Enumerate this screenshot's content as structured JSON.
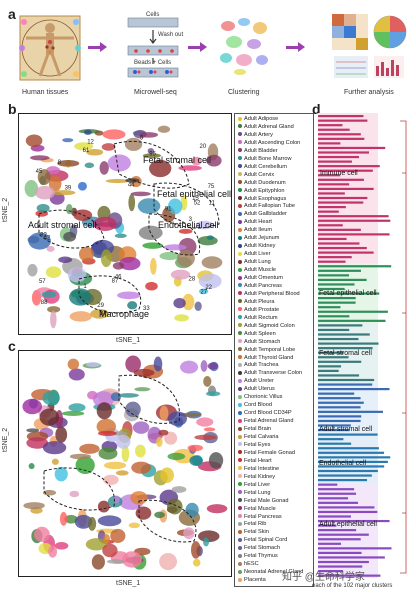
{
  "panel_a": {
    "letter": "a",
    "steps": [
      "Human tissues",
      "Microwell-seq",
      "Clustering",
      "Further analysis"
    ],
    "microwell": {
      "cells": "Cells",
      "wash": "Wash out",
      "beads": "Beads + Cells"
    }
  },
  "panel_b": {
    "letter": "b",
    "xlabel": "tSNE_1",
    "ylabel": "tSNE_2",
    "labels": [
      "Fetal stromal cell",
      "Fetal epithelial cell",
      "Adult stromal cell",
      "Endothelial cell",
      "Macrophage"
    ],
    "numbers": [
      "28",
      "75",
      "22",
      "44",
      "88",
      "12",
      "15",
      "1",
      "20",
      "39",
      "11",
      "45",
      "3",
      "37",
      "57",
      "8",
      "27",
      "61",
      "46",
      "52",
      "82",
      "42",
      "33",
      "91",
      "29",
      "87",
      "5",
      "95"
    ]
  },
  "panel_c": {
    "letter": "c",
    "xlabel": "tSNE_1",
    "ylabel": "tSNE_2"
  },
  "panel_d": {
    "letter": "d",
    "groups": [
      "Immune cell",
      "Fetal epithelial cell",
      "Fetal stromal cell",
      "Adult stromal cell",
      "Endothelial cell",
      "Adult epithelial cell"
    ],
    "footer": "each of the 102 major clusters"
  },
  "legend": [
    {
      "name": "Adult Adipose",
      "color": "#e6c229"
    },
    {
      "name": "Adult Adrenal Gland",
      "color": "#3d7a3d"
    },
    {
      "name": "Adult Artery",
      "color": "#6b4a8a"
    },
    {
      "name": "Adult Ascending Colon",
      "color": "#d06ac0"
    },
    {
      "name": "Adult Bladder",
      "color": "#8a3a6a"
    },
    {
      "name": "Adult Bone Marrow",
      "color": "#2f8f8f"
    },
    {
      "name": "Adult Cerebellum",
      "color": "#4a4a9a"
    },
    {
      "name": "Adult Cervix",
      "color": "#c8b860"
    },
    {
      "name": "Adult Duodenum",
      "color": "#a04a2a"
    },
    {
      "name": "Adult Epityphlon",
      "color": "#2a8a4a"
    },
    {
      "name": "Adult Esophagus",
      "color": "#6a2a2a"
    },
    {
      "name": "Adult Fallopian Tube",
      "color": "#c04040"
    },
    {
      "name": "Adult Gallbladder",
      "color": "#3a6ab0"
    },
    {
      "name": "Adult Heart",
      "color": "#7a3a9a"
    },
    {
      "name": "Adult Ileum",
      "color": "#e08030"
    },
    {
      "name": "Adult Jejunum",
      "color": "#1a7a7a"
    },
    {
      "name": "Adult Kidney",
      "color": "#2a4a8a"
    },
    {
      "name": "Adult Liver",
      "color": "#e0e040"
    },
    {
      "name": "Adult Lung",
      "color": "#8a2a2a"
    },
    {
      "name": "Adult Muscle",
      "color": "#40a040"
    },
    {
      "name": "Adult Omentum",
      "color": "#a02aa0"
    },
    {
      "name": "Adult Pancreas",
      "color": "#3a8ab0"
    },
    {
      "name": "Adult Peripheral Blood",
      "color": "#c03060"
    },
    {
      "name": "Adult Pleura",
      "color": "#6a6a2a"
    },
    {
      "name": "Adult Prostate",
      "color": "#ff6060"
    },
    {
      "name": "Adult Rectum",
      "color": "#30a0a0"
    },
    {
      "name": "Adult Sigmoid Colon",
      "color": "#a0a030"
    },
    {
      "name": "Adult Spleen",
      "color": "#4a8a3a"
    },
    {
      "name": "Adult Stomach",
      "color": "#e0a0c0"
    },
    {
      "name": "Adult Temporal Lobe",
      "color": "#8a6a3a"
    },
    {
      "name": "Adult Thyroid Gland",
      "color": "#d07030"
    },
    {
      "name": "Adult Trachea",
      "color": "#b0b0b0"
    },
    {
      "name": "Adult Transverse Colon",
      "color": "#3a3a3a"
    },
    {
      "name": "Adult Ureter",
      "color": "#c080e0"
    },
    {
      "name": "Adult Uterus",
      "color": "#5a3a8a"
    },
    {
      "name": "Chorionic Villus",
      "color": "#80c080"
    },
    {
      "name": "Cord Blood",
      "color": "#40c0e0"
    },
    {
      "name": "Cord Blood CD34P",
      "color": "#2a6ad0"
    },
    {
      "name": "Fetal Adrenal Gland",
      "color": "#e04080"
    },
    {
      "name": "Fetal Brain",
      "color": "#8a4a2a"
    },
    {
      "name": "Fetal Calvaria",
      "color": "#d0a030"
    },
    {
      "name": "Fetal Eyes",
      "color": "#c0c0f0"
    },
    {
      "name": "Fetal Female Gonad",
      "color": "#a03030"
    },
    {
      "name": "Fetal Heart",
      "color": "#d03030"
    },
    {
      "name": "Fetal Intestine",
      "color": "#f0c040"
    },
    {
      "name": "Fetal Kidney",
      "color": "#f0b0b0"
    },
    {
      "name": "Fetal Liver",
      "color": "#30a030"
    },
    {
      "name": "Fetal Lung",
      "color": "#a060c0"
    },
    {
      "name": "Fetal Male Gonad",
      "color": "#505050"
    },
    {
      "name": "Fetal Muscle",
      "color": "#9a2a6a"
    },
    {
      "name": "Fetal Pancreas",
      "color": "#f080a0"
    },
    {
      "name": "Fetal Rib",
      "color": "#a0a0a0"
    },
    {
      "name": "Fetal Skin",
      "color": "#c06030"
    },
    {
      "name": "Fetal Spinal Cord",
      "color": "#606090"
    },
    {
      "name": "Fetal Stomach",
      "color": "#6060a0"
    },
    {
      "name": "Fetal Thymus",
      "color": "#808080"
    },
    {
      "name": "hESC",
      "color": "#a08060"
    },
    {
      "name": "Neonatal Adrenal Gland",
      "color": "#60a060"
    },
    {
      "name": "Placenta",
      "color": "#f0a060"
    }
  ],
  "watermark": "知乎 @生命科学家"
}
